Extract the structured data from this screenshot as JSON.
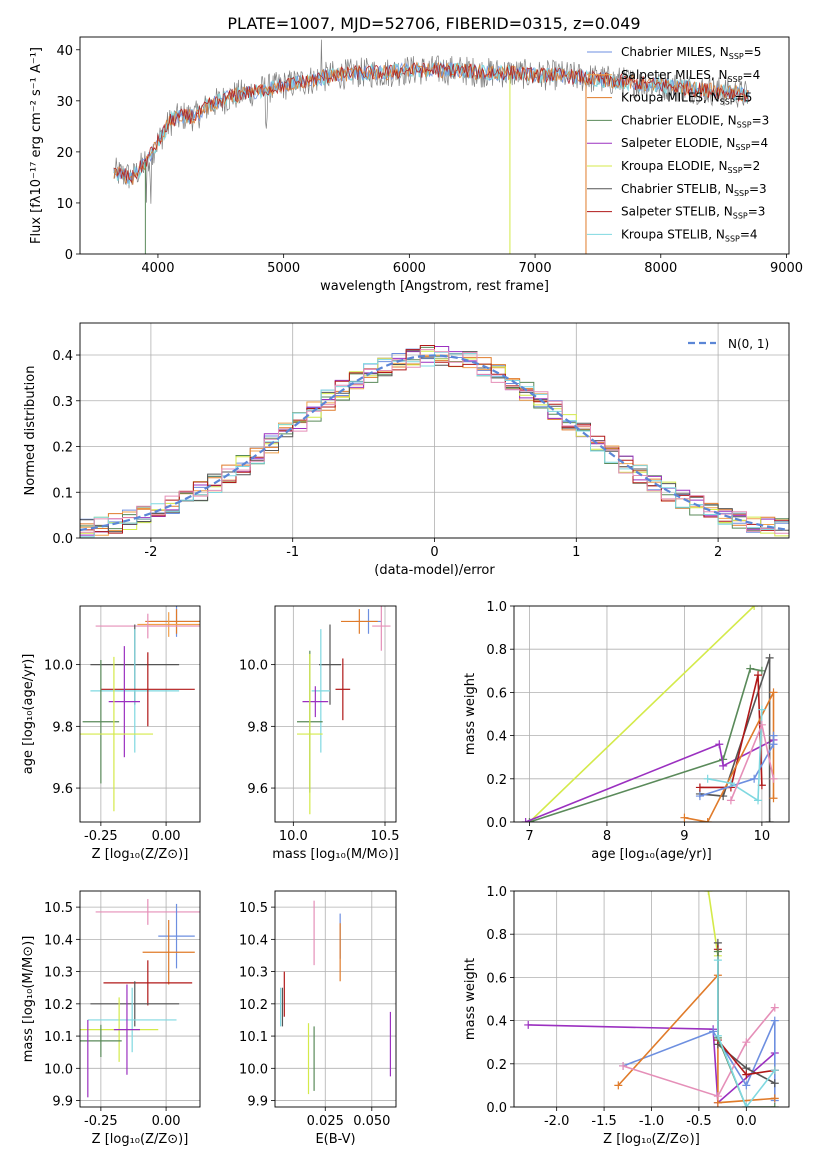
{
  "figure": {
    "title": "PLATE=1007, MJD=52706, FIBERID=0315, z=0.049"
  },
  "colors": {
    "Chabrier MILES": "#6d8fe0",
    "Salpeter MILES": "#f0a04b",
    "Kroupa MILES": "#e07b2a",
    "Chabrier ELODIE": "#5a8a5a",
    "Salpeter ELODIE": "#9b30c0",
    "Kroupa ELODIE": "#d4ea4a",
    "Chabrier STELIB": "#555555",
    "Salpeter STELIB": "#b01818",
    "Kroupa STELIB": "#7fd8e0",
    "extra": "#e58fb8"
  },
  "chart_data": [
    {
      "id": "spectrum",
      "type": "line",
      "title": "PLATE=1007, MJD=52706, FIBERID=0315, z=0.049",
      "xlabel": "wavelength [Angstrom, rest frame]",
      "ylabel": "Flux [fλ10⁻¹⁷ erg cm⁻² s⁻¹ A⁻¹]",
      "xlim": [
        3380,
        9020
      ],
      "ylim": [
        0,
        42.5
      ],
      "xticks": [
        4000,
        5000,
        6000,
        7000,
        8000,
        9000
      ],
      "yticks": [
        0,
        10,
        20,
        30,
        40
      ],
      "grid": false,
      "legend": "top-right",
      "legend_labels": [
        "Chabrier MILES, N",
        "Salpeter MILES, N",
        "Kroupa MILES, N",
        "Chabrier ELODIE, N",
        "Salpeter ELODIE, N",
        "Kroupa ELODIE, N",
        "Chabrier STELIB, N",
        "Salpeter STELIB, N",
        "Kroupa STELIB, N"
      ],
      "legend_sub": "SSP",
      "legend_nssp": [
        "=5",
        "=4",
        "=5",
        "=3",
        "=4",
        "=2",
        "=3",
        "=3",
        "=4"
      ],
      "continuum_x": [
        3650,
        3800,
        3900,
        4000,
        4100,
        4200,
        4300,
        4400,
        4500,
        4600,
        4800,
        5000,
        5200,
        5400,
        5600,
        5800,
        6000,
        6200,
        6400,
        6600,
        6800,
        7000,
        7200,
        7400,
        7600,
        7800,
        8000,
        8200,
        8400,
        8600,
        8700
      ],
      "continuum_y": [
        16,
        15,
        18,
        22,
        26,
        27,
        27,
        29,
        30,
        31,
        32,
        33,
        34,
        35,
        35.5,
        35.5,
        36,
        36,
        36,
        35.5,
        35.5,
        35,
        35,
        34.5,
        34,
        33.5,
        33,
        32.5,
        32,
        31.5,
        31
      ]
    },
    {
      "id": "residual-histogram",
      "type": "line",
      "xlabel": "(data-model)/error",
      "ylabel": "Normed distribution",
      "xlim": [
        -2.5,
        2.5
      ],
      "ylim": [
        0,
        0.47
      ],
      "xticks": [
        -2,
        -1,
        0,
        1,
        2
      ],
      "yticks": [
        0.0,
        0.1,
        0.2,
        0.3,
        0.4
      ],
      "grid": true,
      "legend": "top-right",
      "legend_label": "N(0, 1)",
      "bin_width": 0.1
    },
    {
      "id": "age-vs-Z",
      "type": "scatter",
      "xlabel": "Z [log₁₀(Z/Z⊙)]",
      "ylabel": "age  [log₁₀(age/yr)]",
      "xlim": [
        -0.33,
        0.13
      ],
      "ylim": [
        9.49,
        10.19
      ],
      "xticks": [
        -0.25,
        0.0
      ],
      "yticks": [
        9.6,
        9.8,
        10.0
      ],
      "grid": true,
      "points": [
        {
          "model": "Chabrier MILES",
          "x": 0.04,
          "y": 10.14,
          "xerr": 0.1,
          "yerr": 0.05
        },
        {
          "model": "Kroupa MILES",
          "x": 0.04,
          "y": 10.14,
          "xerr": 0.12,
          "yerr": 0.04
        },
        {
          "model": "Salpeter MILES",
          "x": 0.01,
          "y": 10.13,
          "xerr": 0.12,
          "yerr": 0.04
        },
        {
          "model": "extra",
          "x": -0.07,
          "y": 10.125,
          "xerr": 0.2,
          "yerr": 0.04
        },
        {
          "model": "Chabrier STELIB",
          "x": -0.12,
          "y": 10.0,
          "xerr": 0.17,
          "yerr": 0.13
        },
        {
          "model": "Kroupa STELIB",
          "x": -0.12,
          "y": 9.915,
          "xerr": 0.17,
          "yerr": 0.2
        },
        {
          "model": "Salpeter STELIB",
          "x": -0.07,
          "y": 9.92,
          "xerr": 0.18,
          "yerr": 0.12
        },
        {
          "model": "Salpeter ELODIE",
          "x": -0.16,
          "y": 9.88,
          "xerr": 0.06,
          "yerr": 0.18
        },
        {
          "model": "Chabrier ELODIE",
          "x": -0.25,
          "y": 9.815,
          "xerr": 0.07,
          "yerr": 0.2
        },
        {
          "model": "Kroupa ELODIE",
          "x": -0.2,
          "y": 9.775,
          "xerr": 0.15,
          "yerr": 0.25
        }
      ]
    },
    {
      "id": "age-vs-mass",
      "type": "scatter",
      "xlabel": "mass [log₁₀(M/M⊙)]",
      "xlim": [
        9.9,
        10.56
      ],
      "ylim": [
        9.49,
        10.19
      ],
      "xticks": [
        10.0,
        10.5
      ],
      "yticks": [
        9.6,
        9.8,
        10.0
      ],
      "grid": true,
      "points": [
        {
          "model": "Chabrier MILES",
          "x": 10.41,
          "y": 10.14,
          "xerr": 0.07,
          "yerr": 0.04
        },
        {
          "model": "Kroupa MILES",
          "x": 10.36,
          "y": 10.14,
          "xerr": 0.1,
          "yerr": 0.04
        },
        {
          "model": "extra",
          "x": 10.48,
          "y": 10.125,
          "xerr": 0.05,
          "yerr": 0.08
        },
        {
          "model": "Chabrier STELIB",
          "x": 10.2,
          "y": 10.0,
          "xerr": 0.06,
          "yerr": 0.13
        },
        {
          "model": "Kroupa STELIB",
          "x": 10.15,
          "y": 9.915,
          "xerr": 0.05,
          "yerr": 0.2
        },
        {
          "model": "Salpeter STELIB",
          "x": 10.27,
          "y": 9.92,
          "xerr": 0.04,
          "yerr": 0.1
        },
        {
          "model": "Salpeter ELODIE",
          "x": 10.12,
          "y": 9.88,
          "xerr": 0.07,
          "yerr": 0.05
        },
        {
          "model": "Chabrier ELODIE",
          "x": 10.09,
          "y": 9.815,
          "xerr": 0.07,
          "yerr": 0.23
        },
        {
          "model": "Kroupa ELODIE",
          "x": 10.09,
          "y": 9.775,
          "xerr": 0.07,
          "yerr": 0.26
        }
      ]
    },
    {
      "id": "massweight-vs-age",
      "type": "line",
      "xlabel": "age  [log₁₀(age/yr)]",
      "ylabel": "mass weight",
      "xlim": [
        6.8,
        10.35
      ],
      "ylim": [
        0,
        1.0
      ],
      "xticks": [
        7,
        8,
        9,
        10
      ],
      "yticks": [
        0.0,
        0.2,
        0.4,
        0.6,
        0.8,
        1.0
      ],
      "grid": true,
      "series": [
        {
          "model": "Kroupa ELODIE",
          "x": [
            7.0,
            9.9
          ],
          "y": [
            0.0,
            1.0
          ]
        },
        {
          "model": "Chabrier ELODIE",
          "x": [
            7.0,
            9.5,
            9.85,
            10.0
          ],
          "y": [
            0.0,
            0.29,
            0.71,
            0.7
          ]
        },
        {
          "model": "Salpeter ELODIE",
          "x": [
            6.95,
            9.45,
            9.5,
            10.15
          ],
          "y": [
            0.0,
            0.36,
            0.26,
            0.38
          ]
        },
        {
          "model": "Chabrier STELIB",
          "x": [
            9.2,
            9.5,
            10.1,
            10.1
          ],
          "y": [
            0.13,
            0.12,
            0.76,
            0.0
          ]
        },
        {
          "model": "Salpeter STELIB",
          "x": [
            9.2,
            9.6,
            9.95,
            10.0
          ],
          "y": [
            0.16,
            0.16,
            0.68,
            0.17
          ]
        },
        {
          "model": "Kroupa MILES",
          "x": [
            9.0,
            9.3,
            10.15,
            10.15
          ],
          "y": [
            0.02,
            0.0,
            0.6,
            0.11
          ]
        },
        {
          "model": "Chabrier MILES",
          "x": [
            9.2,
            9.9,
            10.15,
            10.15
          ],
          "y": [
            0.12,
            0.2,
            0.36,
            0.4
          ]
        },
        {
          "model": "Kroupa STELIB",
          "x": [
            9.3,
            9.6,
            9.95,
            10.0
          ],
          "y": [
            0.2,
            0.18,
            0.1,
            0.52
          ]
        },
        {
          "model": "extra",
          "x": [
            9.6,
            10.0,
            10.15
          ],
          "y": [
            0.1,
            0.45,
            0.2
          ]
        }
      ]
    },
    {
      "id": "mass-vs-Z",
      "type": "scatter",
      "xlabel": "Z [log₁₀(Z/Z⊙)]",
      "ylabel": "mass [log₁₀(M/M⊙)]",
      "xlim": [
        -0.33,
        0.13
      ],
      "ylim": [
        9.88,
        10.55
      ],
      "xticks": [
        -0.25,
        0.0
      ],
      "yticks": [
        9.9,
        10.0,
        10.1,
        10.2,
        10.3,
        10.4,
        10.5
      ],
      "grid": true,
      "points": [
        {
          "model": "extra",
          "x": -0.07,
          "y": 10.485,
          "xerr": 0.2,
          "yerr": 0.04
        },
        {
          "model": "Chabrier MILES",
          "x": 0.04,
          "y": 10.41,
          "xerr": 0.07,
          "yerr": 0.1
        },
        {
          "model": "Kroupa MILES",
          "x": 0.01,
          "y": 10.36,
          "xerr": 0.1,
          "yerr": 0.1
        },
        {
          "model": "Salpeter STELIB",
          "x": -0.07,
          "y": 10.265,
          "xerr": 0.17,
          "yerr": 0.07
        },
        {
          "model": "Chabrier STELIB",
          "x": -0.12,
          "y": 10.2,
          "xerr": 0.17,
          "yerr": 0.07
        },
        {
          "model": "Kroupa STELIB",
          "x": -0.13,
          "y": 10.15,
          "xerr": 0.17,
          "yerr": 0.1
        },
        {
          "model": "Kroupa ELODIE",
          "x": -0.18,
          "y": 10.12,
          "xerr": 0.15,
          "yerr": 0.1
        },
        {
          "model": "Salpeter ELODIE",
          "x": -0.15,
          "y": 10.12,
          "xerr": 0.05,
          "yerr": 0.14
        },
        {
          "model": "Chabrier ELODIE",
          "x": -0.25,
          "y": 10.085,
          "xerr": 0.08,
          "yerr": 0.05
        },
        {
          "model": "Salpeter ELODIE",
          "x": -0.3,
          "y": 10.03,
          "xerr": 0.0,
          "yerr": 0.12
        }
      ]
    },
    {
      "id": "mass-vs-EBV",
      "type": "scatter",
      "xlabel": "E(B-V)",
      "xlim": [
        -0.002,
        0.063
      ],
      "ylim": [
        9.88,
        10.55
      ],
      "xticks": [
        0.025,
        0.05
      ],
      "yticks": [
        9.9,
        10.0,
        10.1,
        10.2,
        10.3,
        10.4,
        10.5
      ],
      "grid": true,
      "points": [
        {
          "model": "extra",
          "x": 0.019,
          "y": 10.42,
          "yerr": 0.1
        },
        {
          "model": "Chabrier MILES",
          "x": 0.033,
          "y": 10.41,
          "yerr": 0.07
        },
        {
          "model": "Kroupa MILES",
          "x": 0.033,
          "y": 10.36,
          "yerr": 0.09
        },
        {
          "model": "Salpeter STELIB",
          "x": 0.003,
          "y": 10.23,
          "yerr": 0.07
        },
        {
          "model": "Kroupa STELIB",
          "x": 0.001,
          "y": 10.19,
          "yerr": 0.06
        },
        {
          "model": "Chabrier STELIB",
          "x": 0.002,
          "y": 10.19,
          "yerr": 0.06
        },
        {
          "model": "Chabrier ELODIE",
          "x": 0.019,
          "y": 10.03,
          "yerr": 0.1
        },
        {
          "model": "Kroupa ELODIE",
          "x": 0.016,
          "y": 10.03,
          "yerr": 0.11
        },
        {
          "model": "Salpeter ELODIE",
          "x": 0.06,
          "y": 10.075,
          "yerr": 0.1
        }
      ]
    },
    {
      "id": "massweight-vs-Z",
      "type": "line",
      "xlabel": "Z [log₁₀(Z/Z⊙)]",
      "ylabel": "mass weight",
      "xlim": [
        -2.45,
        0.45
      ],
      "ylim": [
        0,
        1.0
      ],
      "xticks": [
        -2.0,
        -1.5,
        -1.0,
        -0.5,
        0.0
      ],
      "yticks": [
        0.0,
        0.2,
        0.4,
        0.6,
        0.8,
        1.0
      ],
      "grid": true,
      "series": [
        {
          "model": "Kroupa ELODIE",
          "x": [
            -0.4,
            -0.3
          ],
          "y": [
            1.0,
            0.7
          ]
        },
        {
          "model": "Salpeter ELODIE",
          "x": [
            -2.3,
            -0.35,
            -0.3,
            0.3
          ],
          "y": [
            0.38,
            0.36,
            0.02,
            0.25
          ]
        },
        {
          "model": "Chabrier MILES",
          "x": [
            -1.3,
            -0.35,
            0.0,
            0.3,
            0.3
          ],
          "y": [
            0.19,
            0.35,
            0.1,
            0.4,
            0.03
          ]
        },
        {
          "model": "Kroupa MILES",
          "x": [
            -1.35,
            -0.3,
            -0.3,
            0.3
          ],
          "y": [
            0.1,
            0.61,
            0.02,
            0.04
          ]
        },
        {
          "model": "extra",
          "x": [
            -1.3,
            -0.3,
            0.0,
            0.3
          ],
          "y": [
            0.19,
            0.05,
            0.3,
            0.46
          ]
        },
        {
          "model": "Chabrier STELIB",
          "x": [
            -0.3,
            -0.3,
            0.0,
            0.3
          ],
          "y": [
            0.76,
            0.29,
            0.18,
            0.11
          ]
        },
        {
          "model": "Salpeter STELIB",
          "x": [
            -0.3,
            -0.3,
            0.0,
            0.3
          ],
          "y": [
            0.73,
            0.31,
            0.15,
            0.17
          ]
        },
        {
          "model": "Chabrier ELODIE",
          "x": [
            -0.3,
            -0.3,
            0.0,
            0.3
          ],
          "y": [
            0.72,
            0.32,
            0.0,
            0.0
          ]
        },
        {
          "model": "Kroupa STELIB",
          "x": [
            -0.3,
            -0.3,
            0.0,
            0.3
          ],
          "y": [
            0.68,
            0.33,
            0.0,
            0.17
          ]
        }
      ]
    }
  ]
}
